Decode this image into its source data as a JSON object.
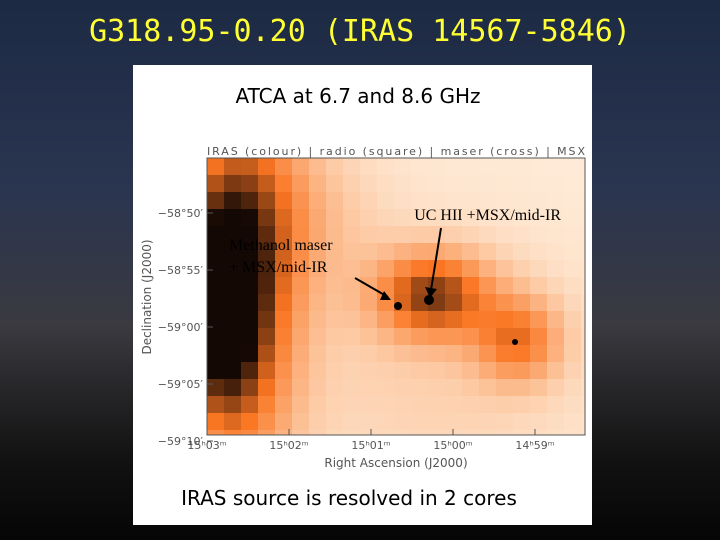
{
  "title": "G318.95-0.20 (IRAS 14567-5846)",
  "figure": {
    "heading": "ATCA at 6.7 and 8.6 GHz",
    "legend": "IRAS (colour)  |  radio (square)  |  maser (cross)  |  MSX",
    "annotations": [
      "UC HII +MSX/mid-IR",
      "Methanol maser",
      "+ MSX/mid-IR"
    ],
    "y_axis_label": "Declination (J2000)",
    "x_axis_label": "Right Ascension (J2000)",
    "y_tick_labels": [
      "−58°50′",
      "−58°55′",
      "−59°00′",
      "−59°05′",
      "−59°10′"
    ],
    "x_tick_labels": [
      "15ʰ03ᵐ",
      "15ʰ02ᵐ",
      "15ʰ01ᵐ",
      "15ʰ00ᵐ",
      "14ʰ59ᵐ"
    ],
    "caption": "IRAS source is resolved in 2 cores"
  }
}
